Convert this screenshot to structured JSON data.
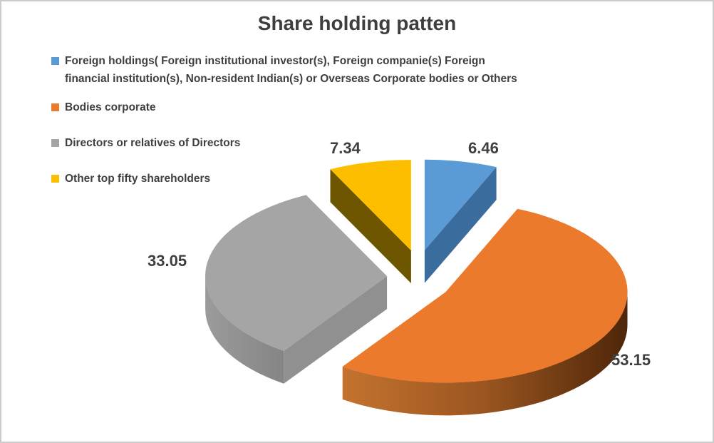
{
  "title": "Share holding patten",
  "legend": {
    "items": [
      {
        "lines": [
          "Foreign holdings( Foreign institutional investor(s), Foreign companie(s) Foreign",
          "financial institution(s), Non-resident Indian(s) or Overseas Corporate bodies or Others"
        ]
      },
      {
        "lines": [
          "Bodies corporate"
        ]
      },
      {
        "lines": [
          "Directors or relatives of Directors"
        ]
      },
      {
        "lines": [
          "Other top fifty shareholders"
        ]
      }
    ]
  },
  "chart_data": {
    "type": "pie",
    "variant": "3d-exploded",
    "title": "Share holding patten",
    "categories": [
      "Foreign holdings( Foreign institutional investor(s), Foreign companie(s) Foreign financial institution(s), Non-resident Indian(s) or Overseas Corporate bodies or Others",
      "Bodies corporate",
      "Directors or relatives of Directors",
      "Other top fifty shareholders"
    ],
    "values": [
      6.46,
      53.15,
      33.05,
      7.34
    ],
    "colors": [
      "#5B9BD5",
      "#EB7A2D",
      "#A5A5A5",
      "#FDBE00"
    ],
    "side_colors": [
      "#3B6C9E",
      "#8A4A18",
      "#909090",
      "#6E5500"
    ],
    "rim_gradients": {
      "1": [
        "#C4732F",
        "#9A5520",
        "#4E2609"
      ],
      "2": [
        "#9B9B9B",
        "#909090",
        "#858585"
      ]
    },
    "start_angle_deg": 0,
    "direction": "clockwise",
    "legend_position": "top-left",
    "label_color": "#3F3F3F",
    "background_color": "#FFFFFF",
    "border_color": "#CBCBCB"
  }
}
